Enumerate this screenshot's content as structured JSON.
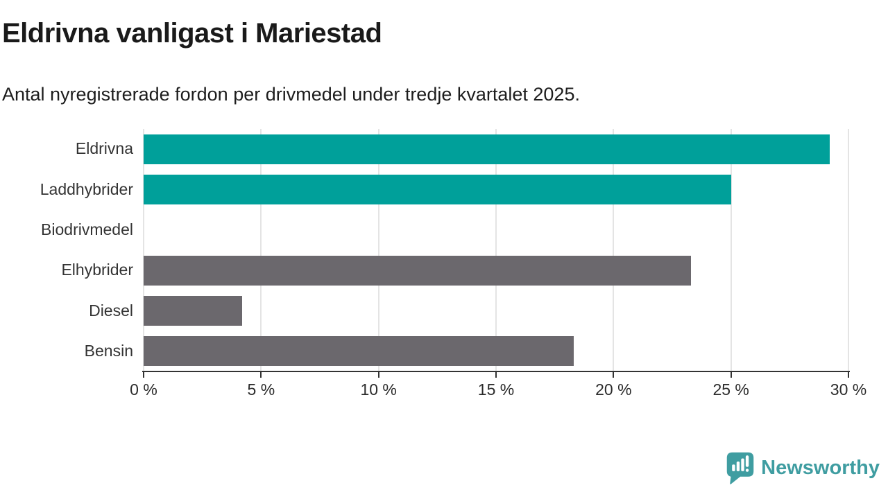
{
  "header": {
    "title": "Eldrivna vanligast i Mariestad",
    "subtitle": "Antal nyregistrerade fordon per drivmedel under tredje kvartalet 2025."
  },
  "chart_data": {
    "type": "bar",
    "orientation": "horizontal",
    "title": "Eldrivna vanligast i Mariestad",
    "subtitle": "Antal nyregistrerade fordon per drivmedel under tredje kvartalet 2025.",
    "categories": [
      "Eldrivna",
      "Laddhybrider",
      "Biodrivmedel",
      "Elhybrider",
      "Diesel",
      "Bensin"
    ],
    "values": [
      29.2,
      25.0,
      0,
      23.3,
      4.2,
      18.3
    ],
    "bar_colors": [
      "#00a09a",
      "#00a09a",
      "#6b686d",
      "#6b686d",
      "#6b686d",
      "#6b686d"
    ],
    "highlight_color": "#00a09a",
    "default_color": "#6b686d",
    "xlim": [
      0,
      30
    ],
    "x_ticks": [
      0,
      5,
      10,
      15,
      20,
      25,
      30
    ],
    "x_tick_labels": [
      "0 %",
      "5 %",
      "10 %",
      "15 %",
      "20 %",
      "25 %",
      "30 %"
    ],
    "xlabel": "",
    "ylabel": "",
    "grid": true,
    "gridline_color": "#e4e4e4",
    "axis_color": "#333333",
    "legend": "none"
  },
  "footer": {
    "brand": "Newsworthy",
    "logo_icon": "speech-bubble-with-bar-chart-and-exclamation",
    "logo_color": "#3f9da1"
  }
}
